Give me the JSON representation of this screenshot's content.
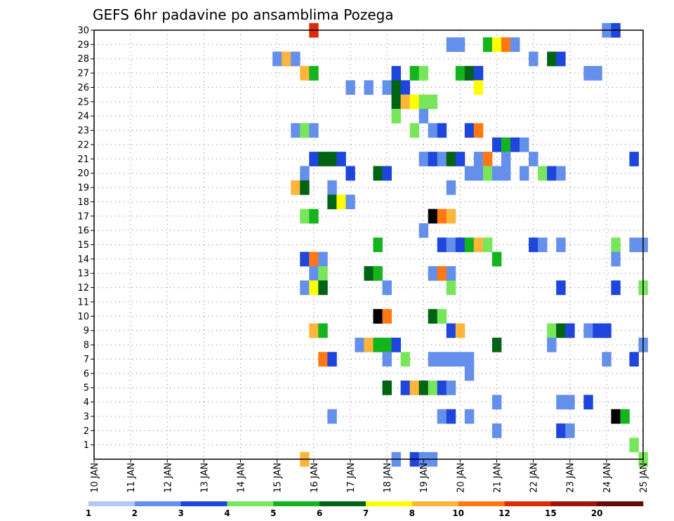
{
  "chart_data": {
    "type": "heatmap",
    "title": "GEFS 6hr padavine po ansamblima Pozega",
    "x_ticks": [
      "10 JAN",
      "11 JAN",
      "12 JAN",
      "13 JAN",
      "14 JAN",
      "15 JAN",
      "16 JAN",
      "17 JAN",
      "18 JAN",
      "19 JAN",
      "20 JAN",
      "21 JAN",
      "22 JAN",
      "23 JAN",
      "24 JAN",
      "25 JAN"
    ],
    "x_range": [
      10,
      25
    ],
    "y_range": [
      0,
      30
    ],
    "y_ticks": [
      1,
      2,
      3,
      4,
      5,
      6,
      7,
      8,
      9,
      10,
      11,
      12,
      13,
      14,
      15,
      16,
      17,
      18,
      19,
      20,
      21,
      22,
      23,
      24,
      25,
      26,
      27,
      28,
      29,
      30
    ],
    "grid": true,
    "colorbar": {
      "position": "bottom",
      "labels": [
        "1",
        "2",
        "3",
        "4",
        "5",
        "6",
        "7",
        "8",
        "10",
        "12",
        "15",
        "20"
      ],
      "colors": [
        "#b4c8f5",
        "#6490eb",
        "#1e46dc",
        "#78e65a",
        "#14b41e",
        "#006414",
        "#ffff00",
        "#ffb43c",
        "#ff7814",
        "#dc2d0a",
        "#a0140a",
        "#640a05"
      ]
    },
    "cells": [
      [
        16,
        30,
        9
      ],
      [
        24,
        30,
        1
      ],
      [
        24.25,
        30,
        2
      ],
      [
        19.75,
        29,
        1
      ],
      [
        20,
        29,
        1
      ],
      [
        20.75,
        29,
        4
      ],
      [
        21,
        29,
        6
      ],
      [
        21.25,
        29,
        8
      ],
      [
        21.5,
        29,
        1
      ],
      [
        15,
        28,
        1
      ],
      [
        15.25,
        28,
        7
      ],
      [
        15.5,
        28,
        1
      ],
      [
        22,
        28,
        1
      ],
      [
        22.5,
        28,
        5
      ],
      [
        22.75,
        28,
        2
      ],
      [
        15.75,
        27,
        7
      ],
      [
        16,
        27,
        4
      ],
      [
        18.25,
        27,
        2
      ],
      [
        18.75,
        27,
        4
      ],
      [
        19,
        27,
        3
      ],
      [
        20,
        27,
        4
      ],
      [
        20.25,
        27,
        5
      ],
      [
        20.5,
        27,
        2
      ],
      [
        23.5,
        27,
        1
      ],
      [
        23.75,
        27,
        1
      ],
      [
        17,
        26,
        1
      ],
      [
        17.5,
        26,
        1
      ],
      [
        18,
        26,
        1
      ],
      [
        18.25,
        26,
        5
      ],
      [
        18.5,
        26,
        2
      ],
      [
        20.5,
        26,
        6
      ],
      [
        18.25,
        25,
        5
      ],
      [
        18.5,
        25,
        7
      ],
      [
        18.75,
        25,
        6
      ],
      [
        19,
        25,
        3
      ],
      [
        19.25,
        25,
        3
      ],
      [
        18.25,
        24,
        3
      ],
      [
        19,
        24,
        1
      ],
      [
        15.5,
        23,
        1
      ],
      [
        15.75,
        23,
        3
      ],
      [
        16,
        23,
        1
      ],
      [
        18.75,
        23,
        3
      ],
      [
        19.25,
        23,
        1
      ],
      [
        19.5,
        23,
        2
      ],
      [
        20.25,
        23,
        2
      ],
      [
        20.5,
        23,
        8
      ],
      [
        21,
        22,
        2
      ],
      [
        21.25,
        22,
        4
      ],
      [
        21.5,
        22,
        2
      ],
      [
        21.75,
        22,
        1
      ],
      [
        16,
        21,
        2
      ],
      [
        16.25,
        21,
        5
      ],
      [
        16.5,
        21,
        5
      ],
      [
        16.75,
        21,
        2
      ],
      [
        19,
        21,
        1
      ],
      [
        19.25,
        21,
        2
      ],
      [
        19.5,
        21,
        1
      ],
      [
        19.75,
        21,
        5
      ],
      [
        20,
        21,
        2
      ],
      [
        20.5,
        21,
        1
      ],
      [
        20.75,
        21,
        8
      ],
      [
        21.25,
        21,
        1
      ],
      [
        22,
        21,
        1
      ],
      [
        24.75,
        21,
        2
      ],
      [
        15.75,
        20,
        1
      ],
      [
        17,
        20,
        2
      ],
      [
        17.75,
        20,
        5
      ],
      [
        18,
        20,
        2
      ],
      [
        20.25,
        20,
        1
      ],
      [
        20.5,
        20,
        1
      ],
      [
        20.75,
        20,
        3
      ],
      [
        21,
        20,
        1
      ],
      [
        21.25,
        20,
        1
      ],
      [
        21.75,
        20,
        1
      ],
      [
        22.25,
        20,
        3
      ],
      [
        22.5,
        20,
        2
      ],
      [
        22.75,
        20,
        1
      ],
      [
        15.5,
        19,
        7
      ],
      [
        15.75,
        19,
        5
      ],
      [
        16.5,
        19,
        1
      ],
      [
        19.75,
        19,
        1
      ],
      [
        16.5,
        18,
        5
      ],
      [
        16.75,
        18,
        6
      ],
      [
        17,
        18,
        1
      ],
      [
        15.75,
        17,
        3
      ],
      [
        16,
        17,
        4
      ],
      [
        19.25,
        17,
        13
      ],
      [
        19.5,
        17,
        8
      ],
      [
        19.75,
        17,
        7
      ],
      [
        19,
        16,
        1
      ],
      [
        17.75,
        15,
        4
      ],
      [
        19.5,
        15,
        2
      ],
      [
        19.75,
        15,
        1
      ],
      [
        20,
        15,
        2
      ],
      [
        20.25,
        15,
        4
      ],
      [
        20.5,
        15,
        7
      ],
      [
        20.75,
        15,
        3
      ],
      [
        22,
        15,
        2
      ],
      [
        22.25,
        15,
        1
      ],
      [
        22.75,
        15,
        1
      ],
      [
        24.25,
        15,
        3
      ],
      [
        24.75,
        15,
        1
      ],
      [
        25,
        15,
        1
      ],
      [
        15.75,
        14,
        2
      ],
      [
        16,
        14,
        8
      ],
      [
        16.25,
        14,
        1
      ],
      [
        21,
        14,
        4
      ],
      [
        24.25,
        14,
        1
      ],
      [
        16,
        13,
        1
      ],
      [
        16.25,
        13,
        3
      ],
      [
        17.5,
        13,
        5
      ],
      [
        17.75,
        13,
        4
      ],
      [
        19.25,
        13,
        1
      ],
      [
        19.5,
        13,
        8
      ],
      [
        19.75,
        13,
        1
      ],
      [
        15.75,
        12,
        1
      ],
      [
        16,
        12,
        6
      ],
      [
        16.25,
        12,
        5
      ],
      [
        18,
        12,
        1
      ],
      [
        19.75,
        12,
        3
      ],
      [
        22.75,
        12,
        2
      ],
      [
        24.25,
        12,
        2
      ],
      [
        25,
        12,
        3
      ],
      [
        17.75,
        10,
        13
      ],
      [
        18,
        10,
        8
      ],
      [
        19.25,
        10,
        5
      ],
      [
        19.5,
        10,
        3
      ],
      [
        16,
        9,
        7
      ],
      [
        16.25,
        9,
        4
      ],
      [
        19.75,
        9,
        2
      ],
      [
        20,
        9,
        7
      ],
      [
        22.5,
        9,
        3
      ],
      [
        22.75,
        9,
        5
      ],
      [
        23,
        9,
        2
      ],
      [
        23.5,
        9,
        1
      ],
      [
        23.75,
        9,
        2
      ],
      [
        24,
        9,
        2
      ],
      [
        17.25,
        8,
        1
      ],
      [
        17.5,
        8,
        7
      ],
      [
        17.75,
        8,
        4
      ],
      [
        18,
        8,
        4
      ],
      [
        18.25,
        8,
        2
      ],
      [
        21,
        8,
        5
      ],
      [
        22.5,
        8,
        1
      ],
      [
        25,
        8,
        1
      ],
      [
        16.25,
        7,
        8
      ],
      [
        16.5,
        7,
        2
      ],
      [
        18,
        7,
        1
      ],
      [
        18.5,
        7,
        3
      ],
      [
        19.25,
        7,
        1
      ],
      [
        19.5,
        7,
        1
      ],
      [
        19.75,
        7,
        1
      ],
      [
        20,
        7,
        1
      ],
      [
        20.25,
        7,
        1
      ],
      [
        24,
        7,
        1
      ],
      [
        24.75,
        7,
        2
      ],
      [
        20.25,
        6,
        1
      ],
      [
        18,
        5,
        5
      ],
      [
        18.5,
        5,
        2
      ],
      [
        18.75,
        5,
        7
      ],
      [
        19,
        5,
        5
      ],
      [
        19.25,
        5,
        3
      ],
      [
        19.5,
        5,
        2
      ],
      [
        19.75,
        5,
        1
      ],
      [
        21,
        4,
        1
      ],
      [
        22.75,
        4,
        1
      ],
      [
        23,
        4,
        1
      ],
      [
        23.5,
        4,
        2
      ],
      [
        16.5,
        3,
        1
      ],
      [
        19.5,
        3,
        1
      ],
      [
        19.75,
        3,
        2
      ],
      [
        20.25,
        3,
        1
      ],
      [
        24.25,
        3,
        13
      ],
      [
        24.5,
        3,
        4
      ],
      [
        21,
        2,
        1
      ],
      [
        22.75,
        2,
        2
      ],
      [
        23,
        2,
        1
      ],
      [
        24.75,
        1,
        3
      ],
      [
        15.75,
        0,
        7
      ],
      [
        18.25,
        0,
        1
      ],
      [
        18.75,
        0,
        2
      ],
      [
        19,
        0,
        1
      ],
      [
        19.25,
        0,
        1
      ],
      [
        25,
        0,
        3
      ]
    ]
  }
}
